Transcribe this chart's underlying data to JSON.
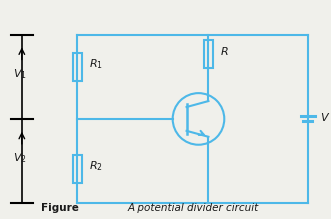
{
  "line_color": "#4db8e8",
  "line_width": 1.5,
  "background_color": "#f0f0eb",
  "text_color": "#1a1a1a",
  "caption_bold": "Figure",
  "caption_italic": "A potential divider circuit",
  "label_V1": "$V_1$",
  "label_V2": "$V_2$",
  "label_R1": "$R_1$",
  "label_R2": "$R_2$",
  "label_R": "$R$",
  "label_V": "$V$",
  "font_size_labels": 8,
  "font_size_caption": 7.5,
  "fig_w": 3.31,
  "fig_h": 2.19,
  "dpi": 100
}
